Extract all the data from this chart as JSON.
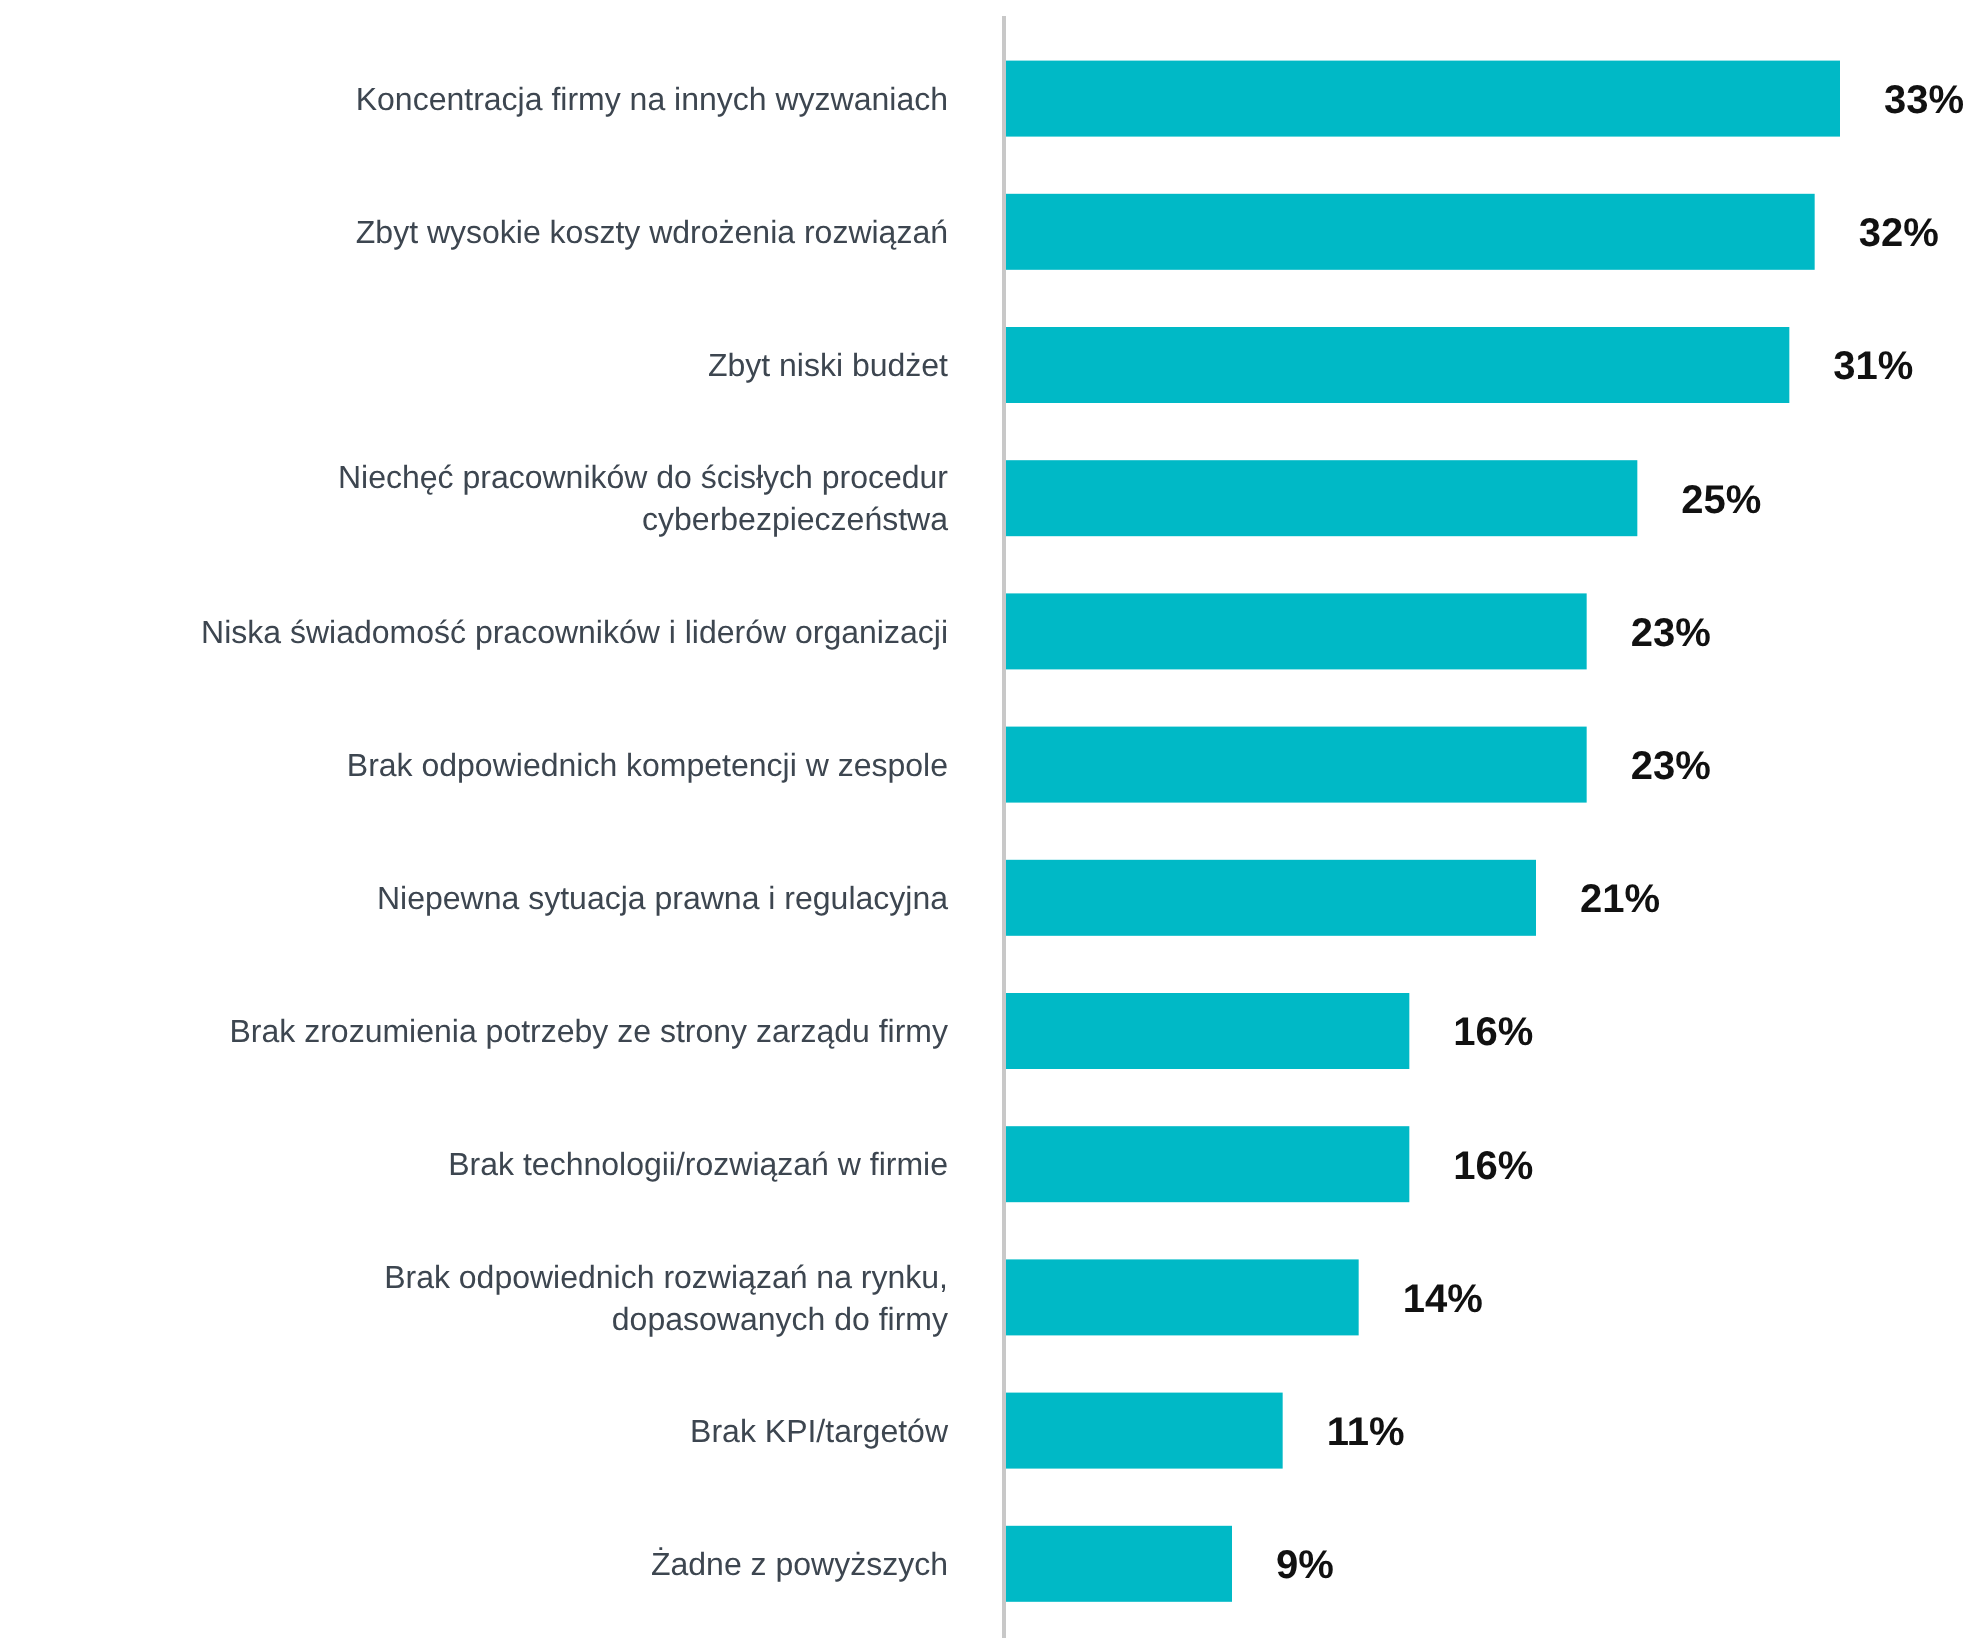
{
  "chart_data": {
    "type": "bar",
    "orientation": "horizontal",
    "categories": [
      "Koncentracja firmy na innych wyzwaniach",
      "Zbyt wysokie koszty wdrożenia rozwiązań",
      "Zbyt niski budżet",
      "Niechęć pracowników do ścisłych procedur\ncyberbezpieczeństwa",
      "Niska świadomość pracowników i liderów organizacji",
      "Brak odpowiednich kompetencji w zespole",
      "Niepewna sytuacja prawna i regulacyjna",
      "Brak zrozumienia potrzeby ze strony zarządu firmy",
      "Brak technologii/rozwiązań w firmie",
      "Brak odpowiednich rozwiązań na rynku,\ndopasowanych do firmy",
      "Brak KPI/targetów",
      "Żadne z powyższych"
    ],
    "values": [
      33,
      32,
      31,
      25,
      23,
      23,
      21,
      16,
      16,
      14,
      11,
      9
    ],
    "value_labels": [
      "33%",
      "32%",
      "31%",
      "25%",
      "23%",
      "23%",
      "21%",
      "16%",
      "16%",
      "14%",
      "11%",
      "9%"
    ],
    "color": "#00b9c6"
  }
}
